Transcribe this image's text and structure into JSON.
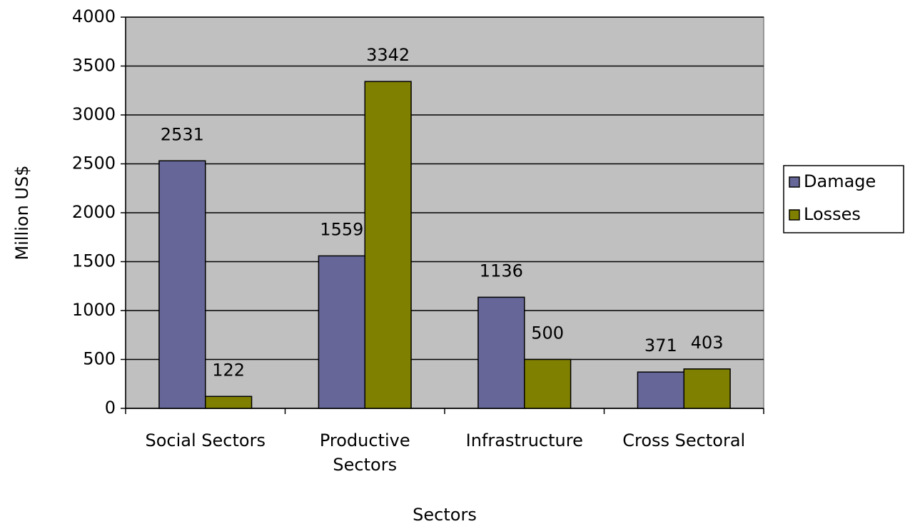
{
  "chart_data": {
    "type": "bar",
    "x_label": "Sectors",
    "y_label": "Million US$",
    "categories": [
      "Social Sectors",
      "Productive Sectors",
      "Infrastructure",
      "Cross Sectoral"
    ],
    "series": [
      {
        "name": "Damage",
        "color": "#666699",
        "values": [
          2531,
          1559,
          1136,
          371
        ]
      },
      {
        "name": "Losses",
        "color": "#808000",
        "values": [
          122,
          3342,
          500,
          403
        ]
      }
    ],
    "ylim": [
      0,
      4000
    ],
    "yticks": [
      0,
      500,
      1000,
      1500,
      2000,
      2500,
      3000,
      3500,
      4000
    ],
    "grid": true,
    "legend": "right",
    "plot_background": "#c0c0c0"
  }
}
